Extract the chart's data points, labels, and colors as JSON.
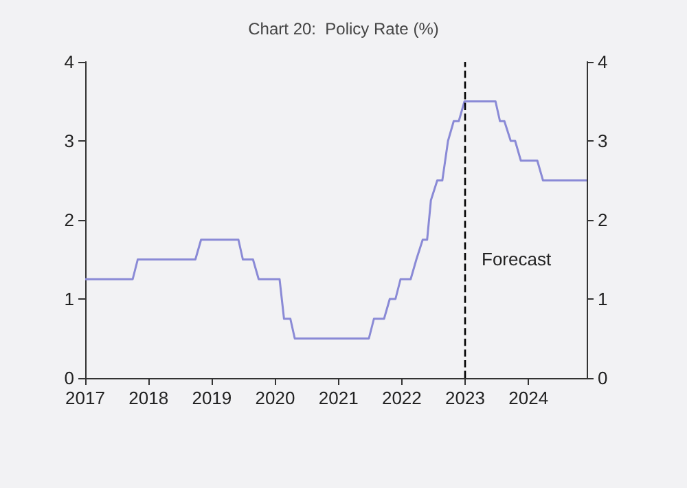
{
  "chart_data": {
    "type": "line",
    "title": "Chart 20:  Policy Rate (%)",
    "x": [
      2017.0,
      2017.75,
      2017.83,
      2018.74,
      2018.83,
      2019.42,
      2019.49,
      2019.65,
      2019.74,
      2020.07,
      2020.14,
      2020.24,
      2020.31,
      2021.48,
      2021.56,
      2021.72,
      2021.81,
      2021.9,
      2021.98,
      2022.14,
      2022.23,
      2022.33,
      2022.4,
      2022.46,
      2022.56,
      2022.64,
      2022.73,
      2022.82,
      2022.9,
      2022.99,
      2023.48,
      2023.55,
      2023.62,
      2023.72,
      2023.79,
      2023.88,
      2024.14,
      2024.23,
      2024.92
    ],
    "series": [
      {
        "color": "#8a8ad6",
        "values": [
          1.25,
          1.25,
          1.5,
          1.5,
          1.75,
          1.75,
          1.5,
          1.5,
          1.25,
          1.25,
          0.75,
          0.75,
          0.5,
          0.5,
          0.75,
          0.75,
          1.0,
          1.0,
          1.25,
          1.25,
          1.5,
          1.75,
          1.75,
          2.25,
          2.5,
          2.5,
          3.0,
          3.25,
          3.25,
          3.5,
          3.5,
          3.25,
          3.25,
          3.0,
          3.0,
          2.75,
          2.75,
          2.5,
          2.5
        ]
      }
    ],
    "xlim": [
      2017,
      2024.92
    ],
    "xticks": [
      2017,
      2018,
      2019,
      2020,
      2021,
      2022,
      2023,
      2024
    ],
    "ylim": [
      0,
      4
    ],
    "yticks": [
      0,
      1,
      2,
      3,
      4
    ],
    "y2lim": [
      0,
      4
    ],
    "y2ticks": [
      0,
      1,
      2,
      3,
      4
    ],
    "ref_lines": [
      {
        "axis": "x",
        "value": 2023,
        "label": "Forecast",
        "line_style": "dashed",
        "color": "#000000"
      }
    ],
    "grid": false
  }
}
